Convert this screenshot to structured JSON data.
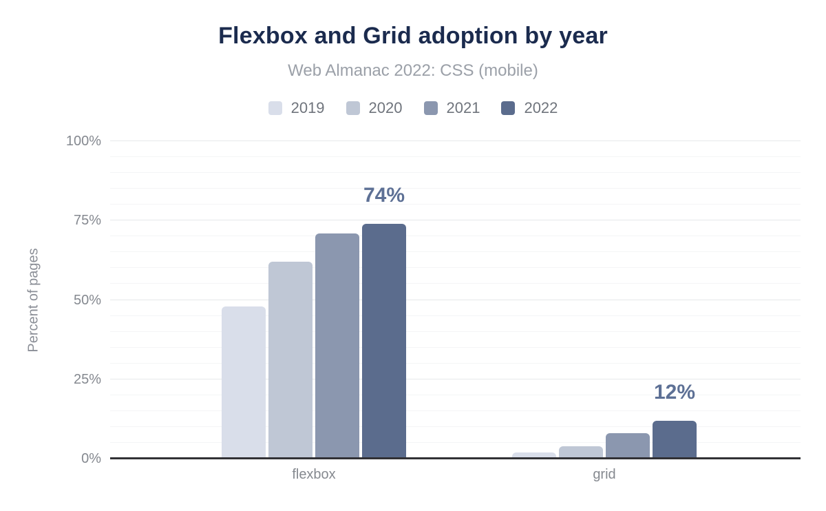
{
  "chart_data": {
    "type": "bar",
    "title": "Flexbox and Grid adoption by year",
    "subtitle": "Web Almanac 2022: CSS (mobile)",
    "categories": [
      "flexbox",
      "grid"
    ],
    "series": [
      {
        "name": "2019",
        "color": "#d9deea",
        "values": [
          48,
          2
        ]
      },
      {
        "name": "2020",
        "color": "#bfc7d5",
        "values": [
          62,
          4
        ]
      },
      {
        "name": "2021",
        "color": "#8b97af",
        "values": [
          71,
          8
        ]
      },
      {
        "name": "2022",
        "color": "#5b6c8d",
        "values": [
          74,
          12
        ]
      }
    ],
    "annotations": [
      {
        "category": "flexbox",
        "series": "2022",
        "label": "74%"
      },
      {
        "category": "grid",
        "series": "2022",
        "label": "12%"
      }
    ],
    "xlabel": "",
    "ylabel": "Percent of pages",
    "ylim": [
      0,
      100
    ],
    "yticks": [
      0,
      25,
      50,
      75,
      100
    ],
    "ytick_labels": [
      "0%",
      "25%",
      "50%",
      "75%",
      "100%"
    ],
    "minor_grid_step": 5,
    "grid": true,
    "legend_position": "top"
  },
  "colors": {
    "title": "#1b2b4e",
    "subtitle": "#9ba0a8",
    "legend_label": "#6f747c",
    "tick_label": "#84888f",
    "category_label": "#85898f",
    "y_axis_title": "#8a8e96",
    "annotation": "#5d7095",
    "axis_line": "#313135",
    "gridline_major": "#e6e8ea",
    "gridline_minor": "#f4f5f6",
    "background": "#ffffff"
  }
}
